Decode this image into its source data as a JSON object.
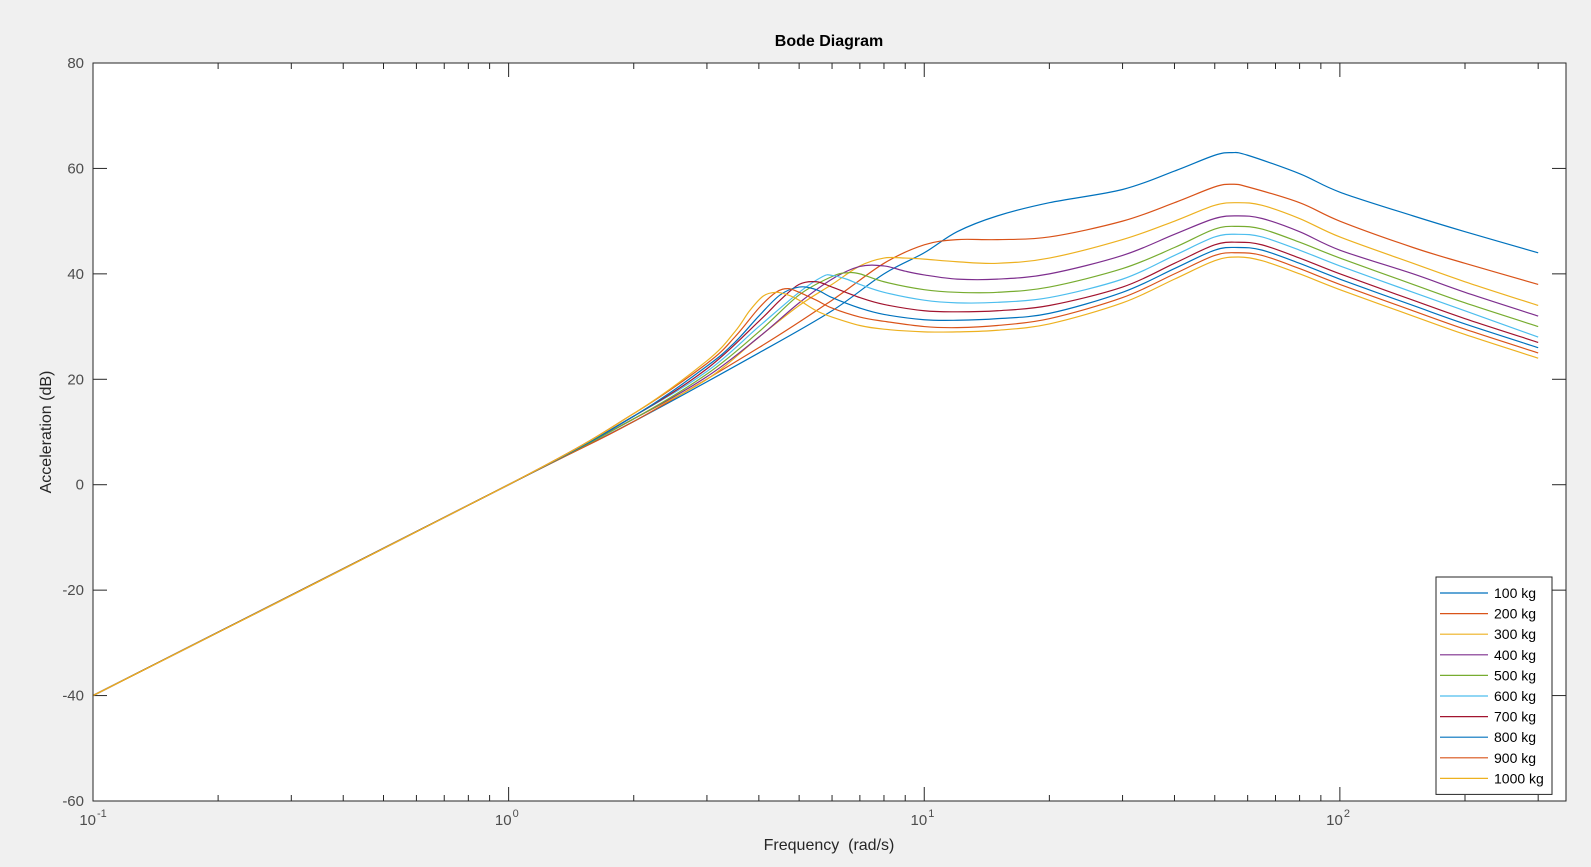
{
  "chart_data": {
    "type": "line",
    "title": "Bode Diagram",
    "xlabel": "Frequency  (rad/s)",
    "ylabel": "Acceleration (dB)",
    "xscale": "log",
    "xlim": [
      0.1,
      350
    ],
    "ylim": [
      -60,
      80
    ],
    "xticks": [
      {
        "value": 0.1,
        "base": "10",
        "exp": "-1"
      },
      {
        "value": 1,
        "base": "10",
        "exp": "0"
      },
      {
        "value": 10,
        "base": "10",
        "exp": "1"
      },
      {
        "value": 100,
        "base": "10",
        "exp": "2"
      }
    ],
    "yticks": [
      {
        "value": -60,
        "label": "-60"
      },
      {
        "value": -40,
        "label": "-40"
      },
      {
        "value": -20,
        "label": "-20"
      },
      {
        "value": 0,
        "label": "0"
      },
      {
        "value": 20,
        "label": "20"
      },
      {
        "value": 40,
        "label": "40"
      },
      {
        "value": 60,
        "label": "60"
      },
      {
        "value": 80,
        "label": "80"
      }
    ],
    "grid": false,
    "legend_position": "bottom-right",
    "series": [
      {
        "name": "100 kg",
        "color": "#0072BD",
        "points": [
          [
            0.1,
            -40
          ],
          [
            1,
            0
          ],
          [
            2,
            12
          ],
          [
            4,
            25
          ],
          [
            6,
            33
          ],
          [
            8,
            40
          ],
          [
            10,
            44
          ],
          [
            12,
            48
          ],
          [
            15,
            51
          ],
          [
            20,
            53.5
          ],
          [
            30,
            56
          ],
          [
            40,
            59.5
          ],
          [
            50,
            62.5
          ],
          [
            55,
            63
          ],
          [
            60,
            62.5
          ],
          [
            80,
            59
          ],
          [
            100,
            55.5
          ],
          [
            150,
            51
          ],
          [
            200,
            48
          ],
          [
            300,
            44
          ]
        ]
      },
      {
        "name": "200 kg",
        "color": "#D95319",
        "points": [
          [
            0.1,
            -40
          ],
          [
            1,
            0
          ],
          [
            2,
            12
          ],
          [
            4,
            26
          ],
          [
            6,
            35
          ],
          [
            8,
            42
          ],
          [
            10,
            45.5
          ],
          [
            12,
            46.5
          ],
          [
            15,
            46.5
          ],
          [
            20,
            47
          ],
          [
            30,
            50
          ],
          [
            40,
            53.5
          ],
          [
            50,
            56.5
          ],
          [
            55,
            57
          ],
          [
            60,
            56.5
          ],
          [
            80,
            53.5
          ],
          [
            100,
            50
          ],
          [
            150,
            45
          ],
          [
            200,
            42
          ],
          [
            300,
            38
          ]
        ]
      },
      {
        "name": "300 kg",
        "color": "#EDB120",
        "points": [
          [
            0.1,
            -40
          ],
          [
            1,
            0
          ],
          [
            2,
            12.5
          ],
          [
            3,
            20
          ],
          [
            4,
            28
          ],
          [
            5,
            34
          ],
          [
            6,
            38
          ],
          [
            7,
            41.5
          ],
          [
            8,
            43
          ],
          [
            9,
            43
          ],
          [
            10,
            42.8
          ],
          [
            12,
            42.3
          ],
          [
            15,
            42
          ],
          [
            20,
            43
          ],
          [
            30,
            46.5
          ],
          [
            40,
            50
          ],
          [
            50,
            53
          ],
          [
            57,
            53.5
          ],
          [
            65,
            53
          ],
          [
            80,
            50.5
          ],
          [
            100,
            47
          ],
          [
            150,
            42
          ],
          [
            200,
            38.5
          ],
          [
            300,
            34
          ]
        ]
      },
      {
        "name": "400 kg",
        "color": "#7E2F8E",
        "points": [
          [
            0.1,
            -40
          ],
          [
            1,
            0
          ],
          [
            2,
            12.5
          ],
          [
            3,
            20.5
          ],
          [
            4,
            28
          ],
          [
            5,
            34.5
          ],
          [
            6,
            39
          ],
          [
            7,
            41.4
          ],
          [
            8,
            41.5
          ],
          [
            9,
            40.5
          ],
          [
            10,
            39.8
          ],
          [
            12,
            39
          ],
          [
            15,
            39
          ],
          [
            20,
            40
          ],
          [
            30,
            43.5
          ],
          [
            40,
            47.5
          ],
          [
            50,
            50.5
          ],
          [
            57,
            51
          ],
          [
            65,
            50.5
          ],
          [
            80,
            48
          ],
          [
            100,
            44.5
          ],
          [
            150,
            40
          ],
          [
            200,
            36.5
          ],
          [
            300,
            32
          ]
        ]
      },
      {
        "name": "500 kg",
        "color": "#77AC30",
        "points": [
          [
            0.1,
            -40
          ],
          [
            1,
            0
          ],
          [
            2,
            12.5
          ],
          [
            3,
            21
          ],
          [
            4,
            29
          ],
          [
            5,
            36
          ],
          [
            6,
            39.5
          ],
          [
            6.5,
            40.2
          ],
          [
            7,
            40
          ],
          [
            8,
            38.5
          ],
          [
            10,
            37
          ],
          [
            12,
            36.5
          ],
          [
            15,
            36.5
          ],
          [
            20,
            37.5
          ],
          [
            30,
            41
          ],
          [
            40,
            45
          ],
          [
            50,
            48.5
          ],
          [
            57,
            49
          ],
          [
            65,
            48.5
          ],
          [
            80,
            46
          ],
          [
            100,
            43
          ],
          [
            150,
            38
          ],
          [
            200,
            34.5
          ],
          [
            300,
            30
          ]
        ]
      },
      {
        "name": "600 kg",
        "color": "#4DBEEE",
        "points": [
          [
            0.1,
            -40
          ],
          [
            1,
            0
          ],
          [
            2,
            13
          ],
          [
            3,
            21.5
          ],
          [
            4,
            30
          ],
          [
            5,
            36.5
          ],
          [
            5.7,
            39.5
          ],
          [
            6,
            39.7
          ],
          [
            6.5,
            39
          ],
          [
            7,
            38
          ],
          [
            8,
            36.5
          ],
          [
            10,
            35
          ],
          [
            12,
            34.5
          ],
          [
            15,
            34.6
          ],
          [
            20,
            35.5
          ],
          [
            30,
            39
          ],
          [
            40,
            43.5
          ],
          [
            50,
            47
          ],
          [
            57,
            47.5
          ],
          [
            65,
            47
          ],
          [
            80,
            44.5
          ],
          [
            100,
            41.5
          ],
          [
            150,
            36.5
          ],
          [
            200,
            33
          ],
          [
            300,
            28
          ]
        ]
      },
      {
        "name": "700 kg",
        "color": "#A2142F",
        "points": [
          [
            0.1,
            -40
          ],
          [
            1,
            0
          ],
          [
            2,
            13
          ],
          [
            3,
            22
          ],
          [
            4,
            31
          ],
          [
            4.5,
            35
          ],
          [
            5,
            38
          ],
          [
            5.5,
            38.5
          ],
          [
            6,
            37.5
          ],
          [
            7,
            35.5
          ],
          [
            8,
            34.2
          ],
          [
            10,
            33
          ],
          [
            12,
            32.8
          ],
          [
            15,
            33
          ],
          [
            20,
            34
          ],
          [
            30,
            37.5
          ],
          [
            40,
            42
          ],
          [
            50,
            45.5
          ],
          [
            57,
            46
          ],
          [
            65,
            45.5
          ],
          [
            80,
            43
          ],
          [
            100,
            40
          ],
          [
            150,
            35
          ],
          [
            200,
            31.5
          ],
          [
            300,
            27
          ]
        ]
      },
      {
        "name": "800 kg",
        "color": "#0072BD",
        "points": [
          [
            0.1,
            -40
          ],
          [
            1,
            0
          ],
          [
            2,
            13
          ],
          [
            3,
            22.5
          ],
          [
            3.5,
            27
          ],
          [
            4,
            32
          ],
          [
            4.5,
            36
          ],
          [
            5,
            37.5
          ],
          [
            5.5,
            37
          ],
          [
            6,
            35.5
          ],
          [
            7,
            33.5
          ],
          [
            8,
            32.3
          ],
          [
            10,
            31.3
          ],
          [
            12,
            31.2
          ],
          [
            15,
            31.5
          ],
          [
            20,
            32.5
          ],
          [
            30,
            36.5
          ],
          [
            40,
            41
          ],
          [
            50,
            44.5
          ],
          [
            57,
            45
          ],
          [
            65,
            44.5
          ],
          [
            80,
            42
          ],
          [
            100,
            39
          ],
          [
            150,
            34
          ],
          [
            200,
            30.5
          ],
          [
            300,
            26
          ]
        ]
      },
      {
        "name": "900 kg",
        "color": "#D95319",
        "points": [
          [
            0.1,
            -40
          ],
          [
            1,
            0
          ],
          [
            2,
            13.5
          ],
          [
            3,
            23
          ],
          [
            3.5,
            28
          ],
          [
            4,
            33.5
          ],
          [
            4.4,
            36.5
          ],
          [
            4.7,
            37.2
          ],
          [
            5,
            36.5
          ],
          [
            5.5,
            35
          ],
          [
            6,
            33.5
          ],
          [
            7,
            31.8
          ],
          [
            8,
            31
          ],
          [
            10,
            30
          ],
          [
            12,
            29.8
          ],
          [
            15,
            30.2
          ],
          [
            20,
            31.5
          ],
          [
            30,
            35.5
          ],
          [
            40,
            40
          ],
          [
            50,
            43.5
          ],
          [
            57,
            44
          ],
          [
            65,
            43.5
          ],
          [
            80,
            41
          ],
          [
            100,
            38
          ],
          [
            150,
            33
          ],
          [
            200,
            29.5
          ],
          [
            300,
            25
          ]
        ]
      },
      {
        "name": "1000 kg",
        "color": "#EDB120",
        "points": [
          [
            0.1,
            -40
          ],
          [
            1,
            0
          ],
          [
            2,
            13.5
          ],
          [
            3,
            23.5
          ],
          [
            3.5,
            29
          ],
          [
            3.8,
            33
          ],
          [
            4.1,
            35.8
          ],
          [
            4.4,
            36.5
          ],
          [
            4.7,
            36
          ],
          [
            5,
            35
          ],
          [
            5.5,
            33
          ],
          [
            6,
            31.8
          ],
          [
            7,
            30.2
          ],
          [
            8,
            29.5
          ],
          [
            10,
            29
          ],
          [
            12,
            29
          ],
          [
            15,
            29.3
          ],
          [
            20,
            30.5
          ],
          [
            30,
            34.5
          ],
          [
            40,
            39
          ],
          [
            50,
            42.5
          ],
          [
            57,
            43.2
          ],
          [
            65,
            42.5
          ],
          [
            80,
            40
          ],
          [
            100,
            37
          ],
          [
            150,
            32
          ],
          [
            200,
            28.5
          ],
          [
            300,
            24
          ]
        ]
      }
    ]
  }
}
